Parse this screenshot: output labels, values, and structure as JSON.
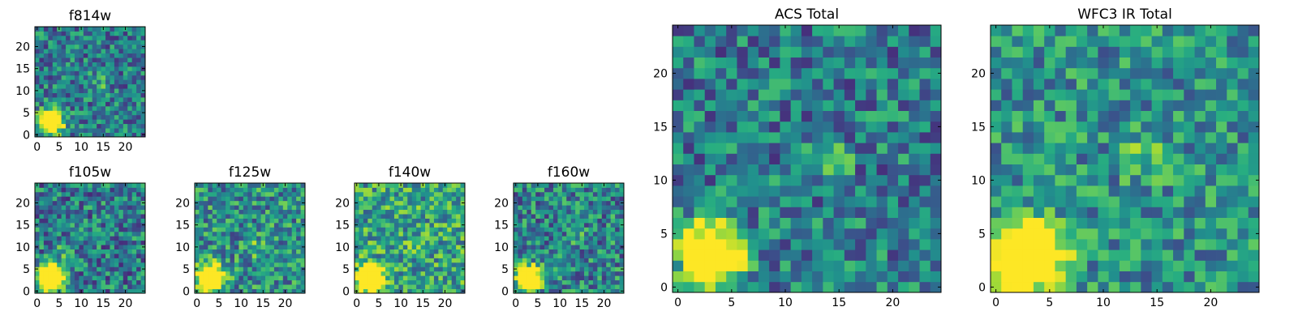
{
  "chart_data": [
    {
      "type": "heatmap",
      "title": "f814w",
      "colormap": "viridis",
      "size": [
        25,
        25
      ],
      "source": {
        "x": 3,
        "y": 3,
        "radius": 2.6
      },
      "hotspots": [
        {
          "x": 14,
          "y": 12,
          "amp": 0.25
        }
      ],
      "noise": 0.28,
      "base": 0.42,
      "x_ticks": [
        "0",
        "5",
        "10",
        "15",
        "20"
      ],
      "y_ticks": [
        "0",
        "5",
        "10",
        "15",
        "20"
      ]
    },
    {
      "type": "heatmap",
      "title": "f105w",
      "colormap": "viridis",
      "size": [
        25,
        25
      ],
      "source": {
        "x": 3,
        "y": 3,
        "radius": 3.0
      },
      "hotspots": [
        {
          "x": 6,
          "y": 9,
          "amp": 0.18
        }
      ],
      "noise": 0.3,
      "base": 0.42,
      "x_ticks": [
        "0",
        "5",
        "10",
        "15",
        "20"
      ],
      "y_ticks": [
        "0",
        "5",
        "10",
        "15",
        "20"
      ]
    },
    {
      "type": "heatmap",
      "title": "f125w",
      "colormap": "viridis",
      "size": [
        25,
        25
      ],
      "source": {
        "x": 3,
        "y": 3,
        "radius": 2.8
      },
      "hotspots": [
        {
          "x": 14,
          "y": 10,
          "amp": 0.25
        }
      ],
      "noise": 0.3,
      "base": 0.5,
      "x_ticks": [
        "0",
        "5",
        "10",
        "15",
        "20"
      ],
      "y_ticks": [
        "0",
        "5",
        "10",
        "15",
        "20"
      ]
    },
    {
      "type": "heatmap",
      "title": "f140w",
      "colormap": "viridis",
      "size": [
        25,
        25
      ],
      "source": {
        "x": 3,
        "y": 3,
        "radius": 2.8
      },
      "hotspots": [
        {
          "x": 14,
          "y": 10,
          "amp": 0.2
        }
      ],
      "noise": 0.3,
      "base": 0.58,
      "x_ticks": [
        "0",
        "5",
        "10",
        "15",
        "20"
      ],
      "y_ticks": [
        "0",
        "5",
        "10",
        "15",
        "20"
      ]
    },
    {
      "type": "heatmap",
      "title": "f160w",
      "colormap": "viridis",
      "size": [
        25,
        25
      ],
      "source": {
        "x": 3,
        "y": 3,
        "radius": 2.6
      },
      "hotspots": [
        {
          "x": 14,
          "y": 12,
          "amp": 0.2
        }
      ],
      "noise": 0.3,
      "base": 0.45,
      "x_ticks": [
        "0",
        "5",
        "10",
        "15",
        "20"
      ],
      "y_ticks": [
        "0",
        "5",
        "10",
        "15",
        "20"
      ]
    },
    {
      "type": "heatmap",
      "title": "ACS Total",
      "colormap": "viridis",
      "size": [
        25,
        25
      ],
      "source": {
        "x": 3,
        "y": 3,
        "radius": 2.6
      },
      "hotspots": [
        {
          "x": 14,
          "y": 12,
          "amp": 0.25
        }
      ],
      "noise": 0.28,
      "base": 0.42,
      "x_ticks": [
        "0",
        "5",
        "10",
        "15",
        "20"
      ],
      "y_ticks": [
        "0",
        "5",
        "10",
        "15",
        "20"
      ]
    },
    {
      "type": "heatmap",
      "title": "WFC3 IR Total",
      "colormap": "viridis",
      "size": [
        25,
        25
      ],
      "source": {
        "x": 3,
        "y": 3,
        "radius": 3.0
      },
      "hotspots": [
        {
          "x": 14,
          "y": 12,
          "amp": 0.25
        }
      ],
      "noise": 0.26,
      "base": 0.5,
      "x_ticks": [
        "0",
        "5",
        "10",
        "15",
        "20"
      ],
      "y_ticks": [
        "0",
        "5",
        "10",
        "15",
        "20"
      ]
    }
  ]
}
